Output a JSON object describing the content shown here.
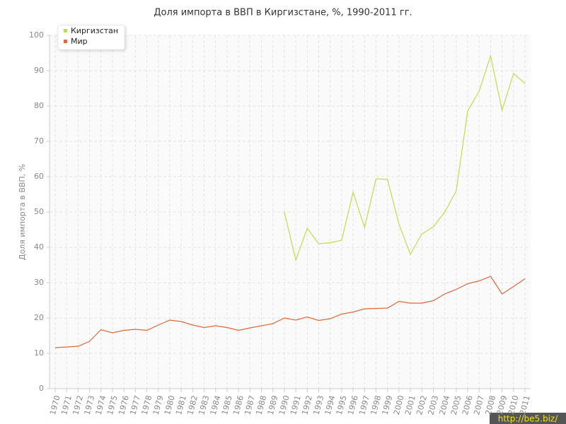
{
  "chart_data": {
    "type": "line",
    "title": "Доля импорта в ВВП в Киргизстане, %, 1990-2011 гг.",
    "y_label": "Доля импорта в ВВП, %",
    "watermark": "http://be5.biz/",
    "x": [
      1970,
      1971,
      1972,
      1973,
      1974,
      1975,
      1976,
      1977,
      1978,
      1979,
      1980,
      1981,
      1982,
      1983,
      1984,
      1985,
      1986,
      1987,
      1988,
      1989,
      1990,
      1991,
      1992,
      1993,
      1994,
      1995,
      1996,
      1997,
      1998,
      1999,
      2000,
      2001,
      2002,
      2003,
      2004,
      2005,
      2006,
      2007,
      2008,
      2009,
      2010,
      2011
    ],
    "xlim": [
      1970,
      2011
    ],
    "xticks": [
      1970,
      1971,
      1972,
      1973,
      1974,
      1975,
      1976,
      1977,
      1978,
      1979,
      1980,
      1981,
      1982,
      1983,
      1984,
      1985,
      1986,
      1987,
      1988,
      1989,
      1990,
      1991,
      1992,
      1993,
      1994,
      1995,
      1996,
      1997,
      1998,
      1999,
      2000,
      2001,
      2002,
      2003,
      2004,
      2005,
      2006,
      2007,
      2008,
      2009,
      2010,
      2011
    ],
    "ylim": [
      0,
      100
    ],
    "yticks": [
      0,
      10,
      20,
      30,
      40,
      50,
      60,
      70,
      80,
      90,
      100
    ],
    "grid": true,
    "legend": "top-left",
    "series": [
      {
        "name": "Киргизстан",
        "color": "#c3dc4c",
        "values": [
          null,
          null,
          null,
          null,
          null,
          null,
          null,
          null,
          null,
          null,
          null,
          null,
          null,
          null,
          null,
          null,
          null,
          null,
          null,
          null,
          50,
          36.4,
          45.4,
          41,
          41.3,
          42,
          55.6,
          45.6,
          59.4,
          59.2,
          46.6,
          38,
          43.8,
          45.8,
          50,
          56,
          78.6,
          84.2,
          94.2,
          78.8,
          89.2,
          86.4
        ]
      },
      {
        "name": "Мир",
        "color": "#e0683a",
        "values": [
          11.6,
          11.8,
          12,
          13.4,
          16.7,
          15.8,
          16.5,
          16.8,
          16.5,
          18,
          19.4,
          19,
          18,
          17.3,
          17.8,
          17.3,
          16.5,
          17.2,
          17.8,
          18.4,
          20,
          19.4,
          20.3,
          19.3,
          19.8,
          21.1,
          21.7,
          22.6,
          22.7,
          22.8,
          24.7,
          24.2,
          24.2,
          24.9,
          26.8,
          28.1,
          29.7,
          30.5,
          31.8,
          26.8,
          28.9,
          31.1
        ]
      }
    ]
  }
}
